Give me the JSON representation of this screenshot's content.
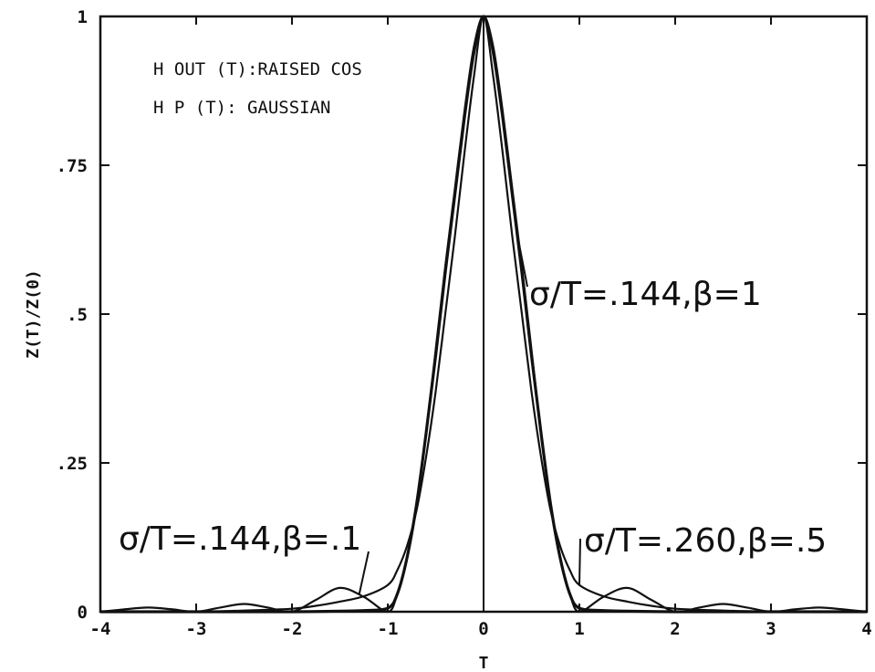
{
  "chart_data": {
    "type": "line",
    "title": "",
    "xlabel": "T",
    "ylabel": "Z(T)/Z(0)",
    "xlim": [
      -4,
      4
    ],
    "ylim": [
      0,
      1
    ],
    "grid": false,
    "legend_lines": [
      "H OUT (T):RAISED COS",
      "H P (T): GAUSSIAN"
    ],
    "x_ticks": [
      {
        "value": -4,
        "label": "-4"
      },
      {
        "value": -3,
        "label": "-3"
      },
      {
        "value": -2,
        "label": "-2"
      },
      {
        "value": -1,
        "label": "-1"
      },
      {
        "value": 0,
        "label": "0"
      },
      {
        "value": 1,
        "label": "1"
      },
      {
        "value": 2,
        "label": "2"
      },
      {
        "value": 3,
        "label": "3"
      },
      {
        "value": 4,
        "label": "4"
      }
    ],
    "y_ticks": [
      {
        "value": 0,
        "label": "0"
      },
      {
        "value": 0.25,
        "label": ".25"
      },
      {
        "value": 0.5,
        "label": ".5"
      },
      {
        "value": 0.75,
        "label": ".75"
      },
      {
        "value": 1,
        "label": "1"
      }
    ],
    "series": [
      {
        "name": "σ/T=.144,β=1",
        "x": [
          -4,
          -3.5,
          -3,
          -2.5,
          -2,
          -1.5,
          -1.25,
          -1,
          -0.9,
          -0.8,
          -0.7,
          -0.6,
          -0.5,
          -0.4,
          -0.3,
          -0.2,
          -0.1,
          0,
          0.1,
          0.2,
          0.3,
          0.4,
          0.5,
          0.6,
          0.7,
          0.8,
          0.9,
          1,
          1.25,
          1.5,
          2,
          2.5,
          3,
          3.5,
          4
        ],
        "y": [
          0,
          0,
          0,
          0,
          0,
          0.001,
          0.002,
          0.006,
          0.03,
          0.09,
          0.18,
          0.3,
          0.43,
          0.57,
          0.7,
          0.83,
          0.94,
          1,
          0.94,
          0.83,
          0.7,
          0.57,
          0.43,
          0.3,
          0.18,
          0.09,
          0.03,
          0.006,
          0.002,
          0.001,
          0,
          0,
          0,
          0,
          0
        ]
      },
      {
        "name": "σ/T=.260,β=.5",
        "x": [
          -4,
          -3.5,
          -3,
          -2.5,
          -2,
          -1.75,
          -1.5,
          -1.25,
          -1,
          -0.9,
          -0.8,
          -0.7,
          -0.6,
          -0.5,
          -0.4,
          -0.3,
          -0.2,
          -0.1,
          0,
          0.1,
          0.2,
          0.3,
          0.4,
          0.5,
          0.6,
          0.7,
          0.8,
          0.9,
          1,
          1.25,
          1.5,
          1.75,
          2,
          2.5,
          3,
          3.5,
          4
        ],
        "y": [
          0,
          0,
          0,
          0.002,
          0.005,
          0.01,
          0.017,
          0.026,
          0.045,
          0.07,
          0.11,
          0.17,
          0.26,
          0.37,
          0.5,
          0.63,
          0.77,
          0.9,
          1,
          0.9,
          0.77,
          0.63,
          0.5,
          0.37,
          0.26,
          0.17,
          0.11,
          0.07,
          0.045,
          0.026,
          0.017,
          0.01,
          0.005,
          0.002,
          0,
          0,
          0
        ]
      },
      {
        "name": "σ/T=.144,β=.1",
        "x": [
          -4,
          -3.75,
          -3.5,
          -3.25,
          -3,
          -2.75,
          -2.5,
          -2.25,
          -2,
          -1.75,
          -1.5,
          -1.25,
          -1,
          -0.9,
          -0.8,
          -0.7,
          -0.6,
          -0.5,
          -0.4,
          -0.3,
          -0.2,
          -0.1,
          0,
          0.1,
          0.2,
          0.3,
          0.4,
          0.5,
          0.6,
          0.7,
          0.8,
          0.9,
          1,
          1.25,
          1.5,
          1.75,
          2,
          2.25,
          2.5,
          2.75,
          3,
          3.25,
          3.5,
          3.75,
          4
        ],
        "y": [
          0,
          0.004,
          0.007,
          0.004,
          0,
          0.007,
          0.013,
          0.007,
          0,
          0.02,
          0.04,
          0.025,
          0,
          0.03,
          0.09,
          0.18,
          0.3,
          0.44,
          0.58,
          0.71,
          0.84,
          0.95,
          1,
          0.95,
          0.84,
          0.71,
          0.58,
          0.44,
          0.3,
          0.18,
          0.09,
          0.03,
          0,
          0.025,
          0.04,
          0.02,
          0,
          0.007,
          0.013,
          0.007,
          0,
          0.004,
          0.007,
          0.004,
          0
        ]
      }
    ],
    "annotations": [
      {
        "label": "σ/T=.144,β=1",
        "series_index": 0
      },
      {
        "label": "σ/T=.260,β=.5",
        "series_index": 1
      },
      {
        "label": "σ/T=.144,β=.1",
        "series_index": 2
      }
    ]
  }
}
